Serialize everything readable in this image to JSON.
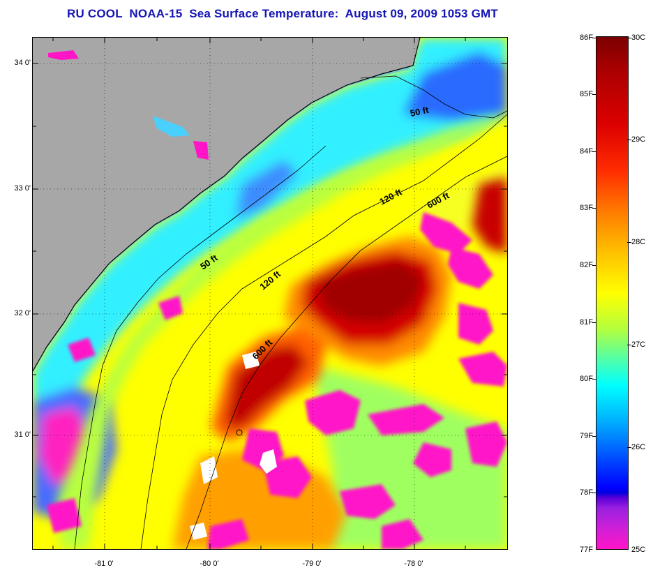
{
  "title": "RU COOL  NOAA-15  Sea Surface Temperature:  August 09, 2009 1053 GMT",
  "map": {
    "lat_labels": [
      "34 0'",
      "33 0'",
      "32 0'",
      "31 0'"
    ],
    "lon_labels": [
      "-81 0'",
      "-80 0'",
      "-79 0'",
      "-78 0'"
    ],
    "isobath_labels": [
      "50 ft",
      "120 ft",
      "600 ft",
      "50 ft",
      "120 ft",
      "600 ft"
    ],
    "colors": {
      "land": "#a7a7a7",
      "ocean_warm": "#c80000",
      "ocean_mid": "#ffff00",
      "ocean_cool": "#00ffff",
      "cold": "#ff14c8"
    }
  },
  "colorbar": {
    "fahrenheit": [
      "86F",
      "85F",
      "84F",
      "83F",
      "82F",
      "81F",
      "80F",
      "79F",
      "78F",
      "77F"
    ],
    "celsius": [
      "30C",
      "29C",
      "28C",
      "27C",
      "26C",
      "25C"
    ]
  }
}
